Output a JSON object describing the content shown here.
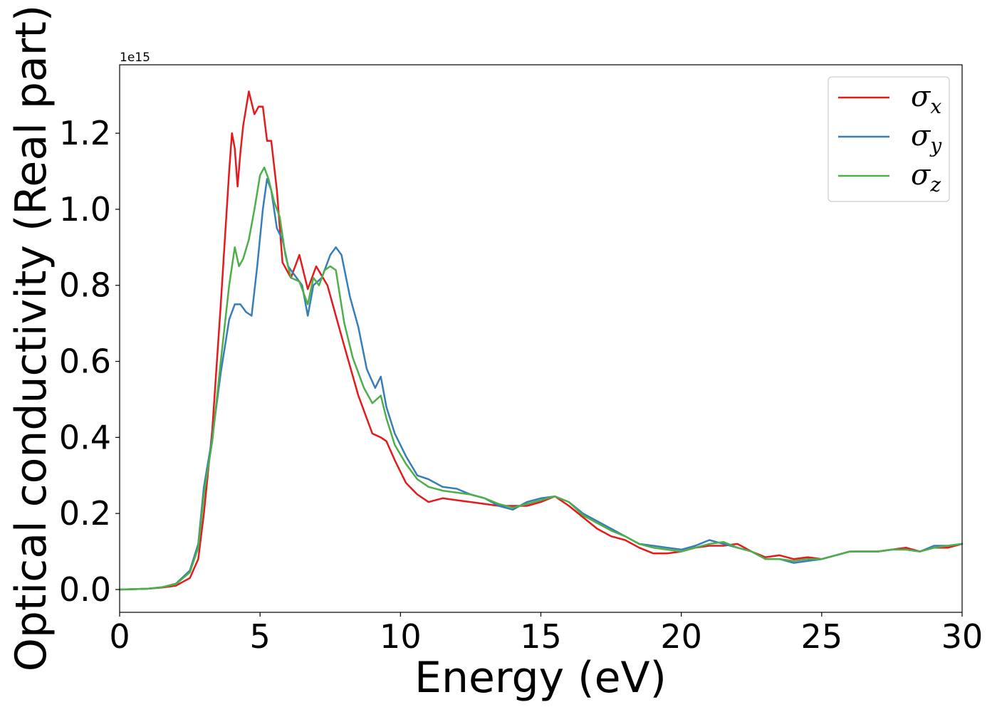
{
  "chart_data": {
    "type": "line",
    "title": "",
    "xlabel": "Energy (eV)",
    "ylabel": "Optical conductivity (Real part)",
    "y_offset_label": "1e15",
    "xlim": [
      0,
      30
    ],
    "ylim": [
      -0.06,
      1.38
    ],
    "x_ticks": [
      0,
      5,
      10,
      15,
      20,
      25,
      30
    ],
    "x_tick_labels": [
      "0",
      "5",
      "10",
      "15",
      "20",
      "25",
      "30"
    ],
    "y_ticks": [
      0.0,
      0.2,
      0.4,
      0.6,
      0.8,
      1.0,
      1.2
    ],
    "y_tick_labels": [
      "0.0",
      "0.2",
      "0.4",
      "0.6",
      "0.8",
      "1.0",
      "1.2"
    ],
    "grid": false,
    "legend_position": "top-right",
    "series": [
      {
        "name": "σx",
        "legend_symbol": "σ",
        "legend_subscript": "x",
        "color": "#e41a1c",
        "x": [
          0,
          1,
          1.5,
          2,
          2.5,
          2.8,
          3,
          3.3,
          3.6,
          3.9,
          4.0,
          4.1,
          4.2,
          4.3,
          4.4,
          4.6,
          4.8,
          4.95,
          5.1,
          5.25,
          5.4,
          5.6,
          5.8,
          6.1,
          6.4,
          6.7,
          7.0,
          7.4,
          7.7,
          8.0,
          8.5,
          9.0,
          9.3,
          9.5,
          9.8,
          10.2,
          10.6,
          11,
          11.5,
          12,
          12.5,
          13,
          13.5,
          14,
          14.5,
          15,
          15.5,
          16,
          16.5,
          17,
          17.5,
          18,
          18.5,
          19,
          19.5,
          20,
          20.5,
          21,
          21.5,
          22,
          22.5,
          23,
          23.5,
          24,
          24.5,
          25,
          25.5,
          26,
          26.5,
          27,
          27.5,
          28,
          28.5,
          29,
          29.5,
          30
        ],
        "y": [
          0.0,
          0.002,
          0.005,
          0.01,
          0.03,
          0.08,
          0.2,
          0.42,
          0.75,
          1.1,
          1.2,
          1.16,
          1.06,
          1.15,
          1.22,
          1.31,
          1.25,
          1.27,
          1.27,
          1.18,
          1.18,
          1.05,
          0.86,
          0.82,
          0.88,
          0.79,
          0.85,
          0.8,
          0.72,
          0.64,
          0.51,
          0.41,
          0.4,
          0.39,
          0.34,
          0.28,
          0.25,
          0.23,
          0.24,
          0.235,
          0.23,
          0.225,
          0.22,
          0.22,
          0.22,
          0.23,
          0.245,
          0.22,
          0.19,
          0.16,
          0.14,
          0.13,
          0.11,
          0.095,
          0.095,
          0.1,
          0.11,
          0.115,
          0.115,
          0.12,
          0.1,
          0.085,
          0.09,
          0.08,
          0.085,
          0.08,
          0.09,
          0.1,
          0.1,
          0.1,
          0.105,
          0.11,
          0.1,
          0.11,
          0.11,
          0.12
        ]
      },
      {
        "name": "σy",
        "legend_symbol": "σ",
        "legend_subscript": "y",
        "color": "#377eb8",
        "x": [
          0,
          1,
          1.5,
          2,
          2.5,
          2.8,
          3,
          3.3,
          3.6,
          3.9,
          4.1,
          4.3,
          4.5,
          4.7,
          4.9,
          5.1,
          5.25,
          5.4,
          5.6,
          5.8,
          6.0,
          6.2,
          6.5,
          6.7,
          6.9,
          7.2,
          7.5,
          7.7,
          7.9,
          8.2,
          8.5,
          8.8,
          9.1,
          9.3,
          9.5,
          9.8,
          10.2,
          10.6,
          11,
          11.5,
          12,
          12.5,
          13,
          13.5,
          14,
          14.5,
          15,
          15.5,
          16,
          16.5,
          17,
          17.5,
          18,
          18.5,
          19,
          19.5,
          20,
          20.5,
          21,
          21.5,
          22,
          22.5,
          23,
          23.5,
          24,
          24.5,
          25,
          25.5,
          26,
          26.5,
          27,
          27.5,
          28,
          28.5,
          29,
          29.5,
          30
        ],
        "y": [
          0.0,
          0.002,
          0.006,
          0.015,
          0.05,
          0.12,
          0.27,
          0.4,
          0.57,
          0.71,
          0.75,
          0.75,
          0.73,
          0.72,
          0.85,
          1.0,
          1.08,
          1.05,
          0.95,
          0.92,
          0.85,
          0.83,
          0.8,
          0.72,
          0.8,
          0.82,
          0.88,
          0.9,
          0.88,
          0.77,
          0.69,
          0.58,
          0.53,
          0.56,
          0.48,
          0.41,
          0.35,
          0.3,
          0.29,
          0.27,
          0.265,
          0.25,
          0.24,
          0.22,
          0.21,
          0.23,
          0.24,
          0.245,
          0.23,
          0.2,
          0.18,
          0.16,
          0.14,
          0.12,
          0.115,
          0.11,
          0.105,
          0.115,
          0.13,
          0.12,
          0.11,
          0.1,
          0.08,
          0.08,
          0.07,
          0.075,
          0.08,
          0.09,
          0.1,
          0.1,
          0.1,
          0.105,
          0.105,
          0.1,
          0.115,
          0.115,
          0.12
        ]
      },
      {
        "name": "σz",
        "legend_symbol": "σ",
        "legend_subscript": "z",
        "color": "#4daf4a",
        "x": [
          0,
          1,
          1.5,
          2,
          2.5,
          2.8,
          3,
          3.3,
          3.6,
          3.9,
          4.1,
          4.25,
          4.4,
          4.6,
          4.8,
          5.0,
          5.15,
          5.3,
          5.5,
          5.7,
          5.9,
          6.1,
          6.4,
          6.7,
          6.9,
          7.1,
          7.3,
          7.5,
          7.7,
          8.0,
          8.3,
          8.7,
          9.0,
          9.3,
          9.5,
          9.8,
          10.2,
          10.6,
          11,
          11.5,
          12,
          12.5,
          13,
          13.5,
          14,
          14.5,
          15,
          15.5,
          16,
          16.5,
          17,
          17.5,
          18,
          18.5,
          19,
          19.5,
          20,
          20.5,
          21,
          21.5,
          22,
          22.5,
          23,
          23.5,
          24,
          24.5,
          25,
          25.5,
          26,
          26.5,
          27,
          27.5,
          28,
          28.5,
          29,
          29.5,
          30
        ],
        "y": [
          0.0,
          0.002,
          0.006,
          0.014,
          0.045,
          0.11,
          0.25,
          0.39,
          0.6,
          0.8,
          0.9,
          0.85,
          0.87,
          0.92,
          1.0,
          1.09,
          1.11,
          1.08,
          1.02,
          0.98,
          0.88,
          0.82,
          0.81,
          0.75,
          0.82,
          0.8,
          0.84,
          0.85,
          0.84,
          0.7,
          0.61,
          0.53,
          0.49,
          0.51,
          0.45,
          0.38,
          0.33,
          0.29,
          0.27,
          0.26,
          0.255,
          0.25,
          0.24,
          0.225,
          0.215,
          0.225,
          0.235,
          0.245,
          0.23,
          0.195,
          0.175,
          0.155,
          0.14,
          0.12,
          0.11,
          0.105,
          0.1,
          0.11,
          0.12,
          0.125,
          0.11,
          0.1,
          0.08,
          0.08,
          0.075,
          0.08,
          0.08,
          0.09,
          0.1,
          0.1,
          0.1,
          0.105,
          0.105,
          0.1,
          0.11,
          0.115,
          0.12
        ]
      }
    ]
  }
}
